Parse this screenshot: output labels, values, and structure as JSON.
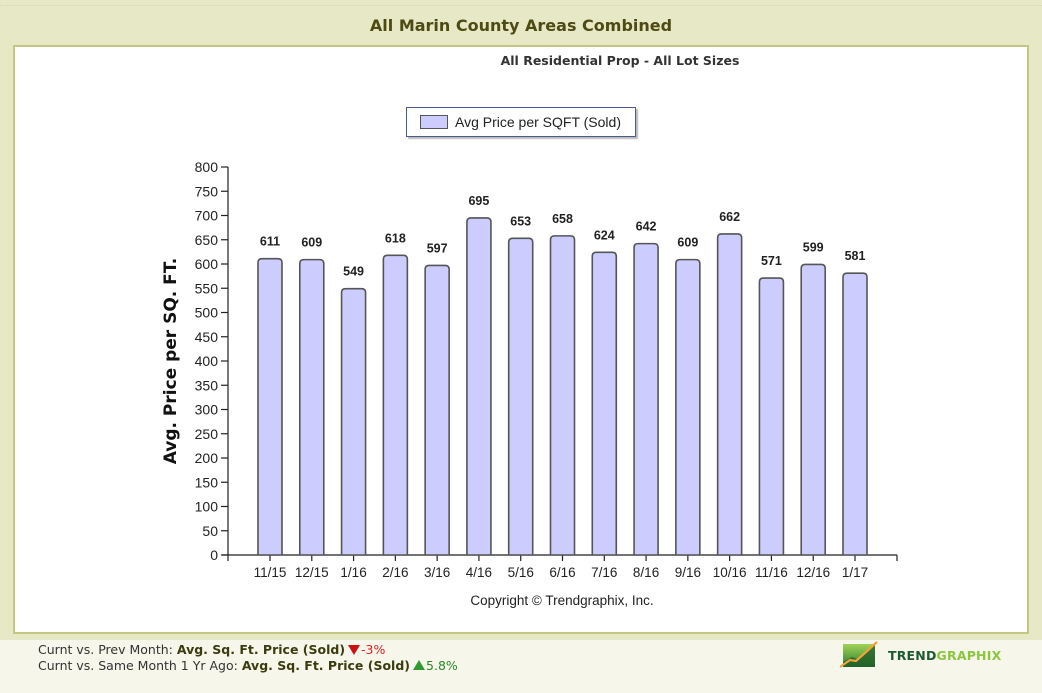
{
  "header": {
    "title": "All Marin County Areas Combined"
  },
  "chart": {
    "subtitle": "All Residential Prop - All Lot Sizes",
    "legend_label": "Avg Price per SQFT (Sold)",
    "ylabel": "Avg. Price per SQ. FT.",
    "copyright": "Copyright © Trendgraphix, Inc."
  },
  "chart_data": {
    "type": "bar",
    "title": "All Marin County Areas Combined",
    "subtitle": "All Residential Prop - All Lot Sizes",
    "xlabel": "",
    "ylabel": "Avg. Price per SQ. FT.",
    "categories": [
      "11/15",
      "12/15",
      "1/16",
      "2/16",
      "3/16",
      "4/16",
      "5/16",
      "6/16",
      "7/16",
      "8/16",
      "9/16",
      "10/16",
      "11/16",
      "12/16",
      "1/17"
    ],
    "series": [
      {
        "name": "Avg Price per SQFT (Sold)",
        "color": "#ccccff",
        "values": [
          611,
          609,
          549,
          618,
          597,
          695,
          653,
          658,
          624,
          642,
          609,
          662,
          571,
          599,
          581
        ]
      }
    ],
    "ylim": [
      0,
      800
    ],
    "yticks": [
      0,
      50,
      100,
      150,
      200,
      250,
      300,
      350,
      400,
      450,
      500,
      550,
      600,
      650,
      700,
      750,
      800
    ],
    "grid": false,
    "legend_position": "top",
    "data_labels": true
  },
  "footer": {
    "line1_prefix": "Curnt vs. Prev Month: ",
    "line1_metric": "Avg. Sq. Ft. Price (Sold)",
    "line1_change": "-3%",
    "line1_direction": "down",
    "line2_prefix": "Curnt vs. Same Month 1 Yr Ago: ",
    "line2_metric": "Avg. Sq. Ft. Price (Sold)",
    "line2_change": "5.8%",
    "line2_direction": "up",
    "colors": {
      "down": "#e02020",
      "up": "#2a8a2a"
    }
  },
  "logo": {
    "text_part1": "TREND",
    "text_part2": "GRAPHIX",
    "icon": "trend-chart-logo-icon"
  }
}
